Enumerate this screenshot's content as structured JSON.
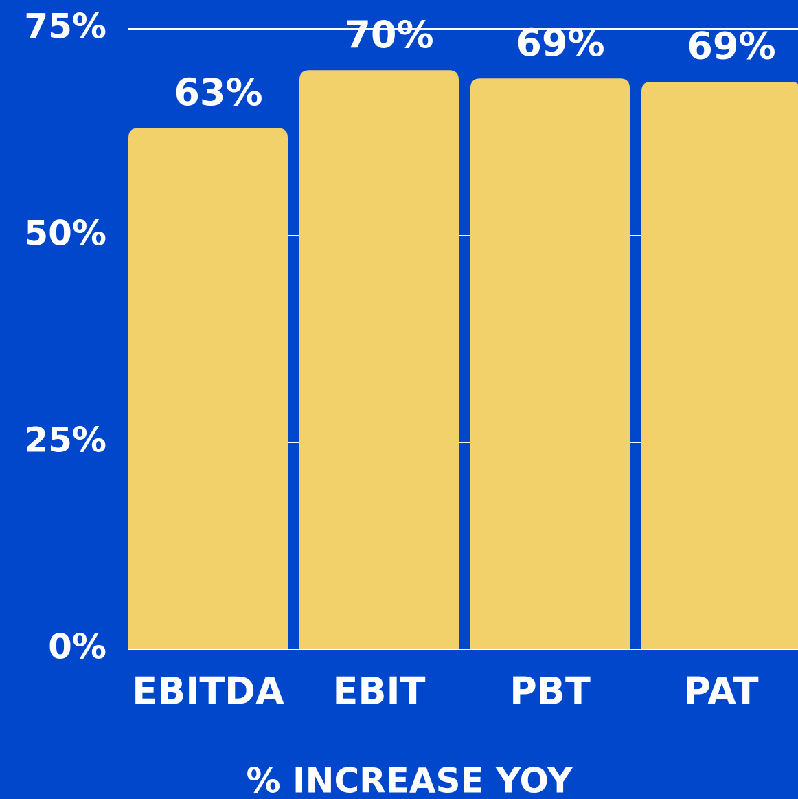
{
  "chart_data": {
    "type": "bar",
    "x_label": "% INCREASE YOY",
    "categories": [
      "EBITDA",
      "EBIT",
      "PBT",
      "PAT"
    ],
    "values": [
      63,
      70,
      69,
      68.6
    ],
    "value_labels": [
      "63%",
      "70%",
      "69%",
      "69%"
    ],
    "color": "#f2d16b",
    "background": "#0047cc",
    "ylim": [
      0,
      75
    ],
    "yticks": [
      {
        "value": 0,
        "label": "0%"
      },
      {
        "value": 25,
        "label": "25%"
      },
      {
        "value": 50,
        "label": "50%"
      },
      {
        "value": 75,
        "label": "75%"
      }
    ],
    "grid": true
  }
}
